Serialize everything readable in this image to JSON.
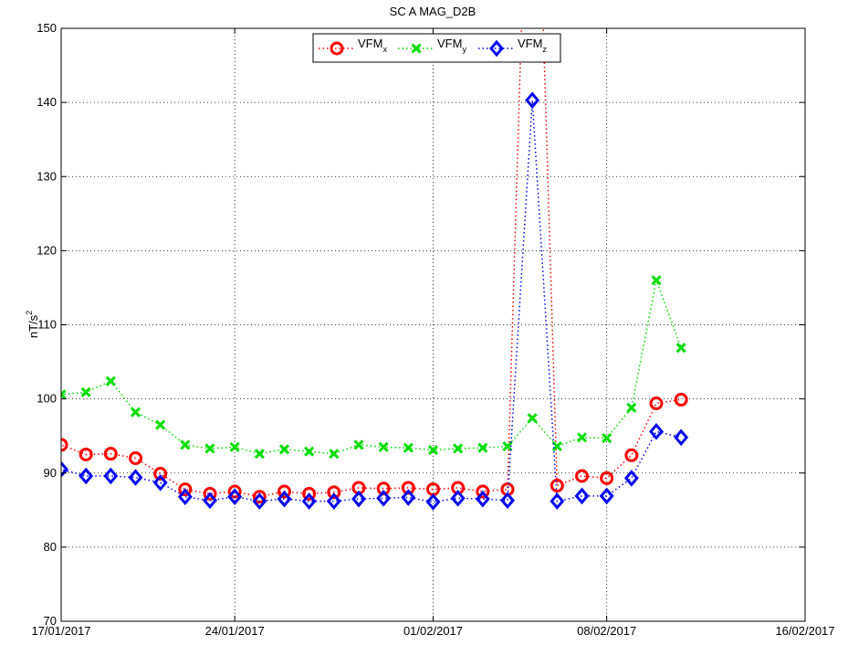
{
  "chart_data": {
    "type": "line",
    "title": "SC A MAG_D2B",
    "xlabel": "",
    "ylabel_base": "nT/s",
    "ylabel_sup": "2",
    "ylim": [
      70,
      150
    ],
    "y_ticks": [
      "70",
      "80",
      "90",
      "100",
      "110",
      "120",
      "130",
      "140",
      "150"
    ],
    "xlim": [
      "2017-01-17",
      "2017-02-16"
    ],
    "x_ticks": [
      {
        "date": "2017-01-17",
        "label": "17/01/2017"
      },
      {
        "date": "2017-01-24",
        "label": "24/01/2017"
      },
      {
        "date": "2017-02-01",
        "label": "01/02/2017"
      },
      {
        "date": "2017-02-08",
        "label": "08/02/2017"
      },
      {
        "date": "2017-02-16",
        "label": "16/02/2017"
      }
    ],
    "grid": true,
    "legend_position": "top-center",
    "x": [
      "2017-01-17",
      "2017-01-18",
      "2017-01-19",
      "2017-01-20",
      "2017-01-21",
      "2017-01-22",
      "2017-01-23",
      "2017-01-24",
      "2017-01-25",
      "2017-01-26",
      "2017-01-27",
      "2017-01-28",
      "2017-01-29",
      "2017-01-30",
      "2017-01-31",
      "2017-02-01",
      "2017-02-02",
      "2017-02-03",
      "2017-02-04",
      "2017-02-05",
      "2017-02-06",
      "2017-02-07",
      "2017-02-08",
      "2017-02-09",
      "2017-02-10",
      "2017-02-11",
      "2017-02-12"
    ],
    "series": [
      {
        "name_base": "VFM",
        "name_sub": "x",
        "color": "#ff0000",
        "marker": "circle",
        "line_start": [
          "2017-01-16",
          95.3
        ],
        "values": [
          93.8,
          92.5,
          92.6,
          92.0,
          89.9,
          87.8,
          87.2,
          87.5,
          86.8,
          87.5,
          87.2,
          87.4,
          88.0,
          87.9,
          88.0,
          87.8,
          88.0,
          87.5,
          87.8,
          null,
          88.3,
          89.6,
          89.3,
          92.4,
          99.4,
          99.9,
          null
        ],
        "offscale": [
          null,
          null,
          null,
          null,
          null,
          null,
          null,
          null,
          null,
          null,
          null,
          null,
          null,
          null,
          null,
          null,
          null,
          null,
          null,
          "high",
          null,
          null,
          null,
          null,
          null,
          null,
          null
        ]
      },
      {
        "name_base": "VFM",
        "name_sub": "y",
        "color": "#00dd00",
        "marker": "x",
        "line_start": [
          "2017-01-16",
          102.8
        ],
        "values": [
          100.6,
          100.9,
          102.4,
          98.2,
          96.5,
          93.8,
          93.3,
          93.5,
          92.6,
          93.2,
          92.9,
          92.6,
          93.8,
          93.5,
          93.4,
          93.1,
          93.3,
          93.4,
          93.6,
          97.4,
          93.6,
          94.8,
          94.7,
          98.8,
          116.0,
          106.9,
          null
        ]
      },
      {
        "name_base": "VFM",
        "name_sub": "z",
        "color": "#0000ee",
        "marker": "diamond",
        "line_start": [
          "2017-01-16",
          91.8
        ],
        "values": [
          90.5,
          89.6,
          89.6,
          89.4,
          88.7,
          86.8,
          86.3,
          86.8,
          86.2,
          86.5,
          86.2,
          86.2,
          86.5,
          86.6,
          86.7,
          86.1,
          86.6,
          86.5,
          86.3,
          140.3,
          86.2,
          86.9,
          86.9,
          89.3,
          95.6,
          94.8,
          null
        ]
      }
    ]
  }
}
